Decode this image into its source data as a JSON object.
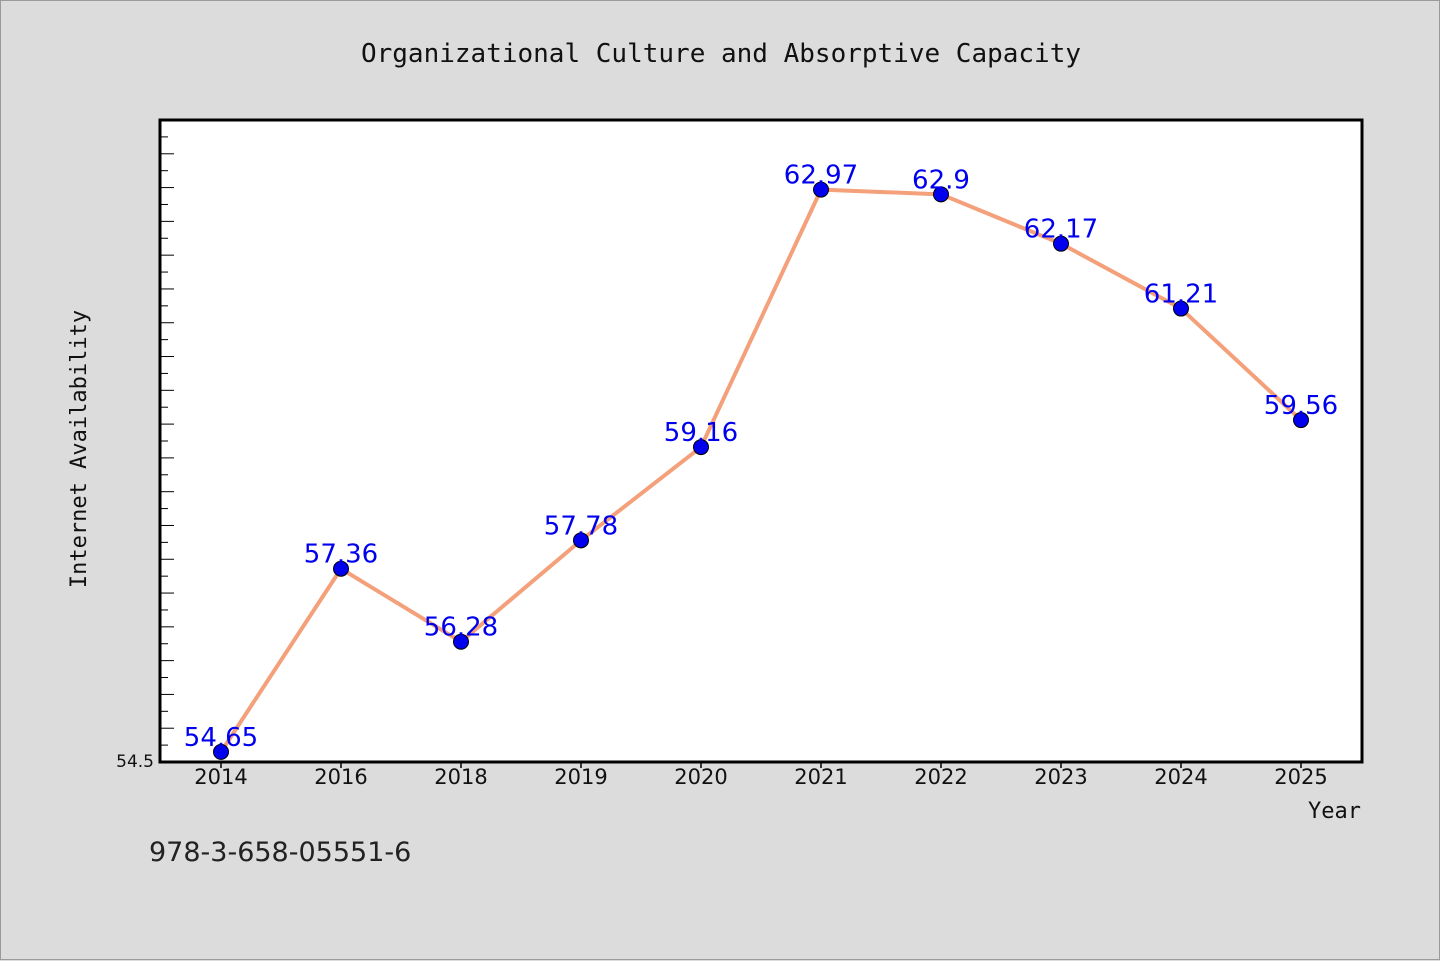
{
  "chart_data": {
    "type": "line",
    "title": "Organizational Culture and Absorptive Capacity",
    "xlabel": "Year",
    "ylabel": "Internet Availability",
    "categories": [
      "2014",
      "2016",
      "2018",
      "2019",
      "2020",
      "2021",
      "2022",
      "2023",
      "2024",
      "2025"
    ],
    "values": [
      54.65,
      57.36,
      56.28,
      57.78,
      59.16,
      62.97,
      62.9,
      62.17,
      61.21,
      59.56
    ],
    "value_labels": [
      "54.65",
      "57.36",
      "56.28",
      "57.78",
      "59.16",
      "62.97",
      "62.9",
      "62.17",
      "61.21",
      "59.56"
    ],
    "ylim": [
      54.5,
      64.0
    ],
    "y_tick_labels": [
      "54.5"
    ],
    "grid": false,
    "colors": {
      "line": "#f4a07a",
      "marker": "#0000ee",
      "label": "#0000ee",
      "background": "#dcdcdc",
      "plot_background": "#ffffff"
    }
  },
  "footer": {
    "isbn": "978-3-658-05551-6"
  }
}
